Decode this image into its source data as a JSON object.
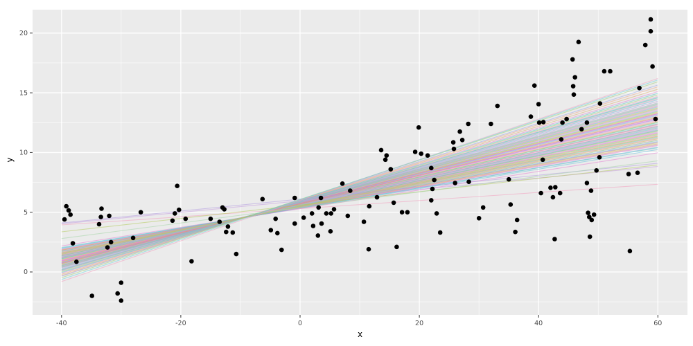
{
  "chart_data": {
    "type": "scatter",
    "title": "",
    "xlabel": "x",
    "ylabel": "y",
    "xlim": [
      -44.9,
      65.0
    ],
    "ylim": [
      -3.6,
      22.0
    ],
    "x_ticks": [
      -40,
      -20,
      0,
      20,
      40,
      60
    ],
    "y_ticks": [
      0,
      5,
      10,
      15,
      20
    ],
    "x_minor_ticks": [
      -30,
      -10,
      10,
      30,
      50
    ],
    "y_minor_ticks": [
      -2.5,
      2.5,
      7.5,
      12.5,
      17.5
    ],
    "grid": "on",
    "legend": "none",
    "panel_bg": "#EBEBEB",
    "grid_color": "#FFFFFF",
    "tick_label_color": "#4d4d4d",
    "tick_mark_color": "#333333",
    "point_color": "#000000",
    "point_radius": 3.3,
    "line_opacity": 0.55,
    "line_x_range": [
      -40,
      60
    ],
    "points": [
      [
        -39.2,
        5.5
      ],
      [
        -38.8,
        5.15
      ],
      [
        -38.5,
        4.8
      ],
      [
        -39.5,
        4.4
      ],
      [
        -33.3,
        5.3
      ],
      [
        -33.4,
        4.6
      ],
      [
        -32,
        4.7
      ],
      [
        -33.7,
        4.0
      ],
      [
        -38.1,
        2.4
      ],
      [
        -31.7,
        2.5
      ],
      [
        -32.3,
        2.05
      ],
      [
        -28,
        2.85
      ],
      [
        -37.5,
        0.85
      ],
      [
        -30,
        -0.9
      ],
      [
        -34.9,
        -2.0
      ],
      [
        -30.6,
        -1.8
      ],
      [
        -30,
        -2.4
      ],
      [
        -26.7,
        5.0
      ],
      [
        -20.6,
        7.2
      ],
      [
        -20.3,
        5.2
      ],
      [
        -21,
        4.9
      ],
      [
        -21.4,
        4.3
      ],
      [
        -19.2,
        4.45
      ],
      [
        -13,
        5.4
      ],
      [
        -12.7,
        5.25
      ],
      [
        -15,
        4.45
      ],
      [
        -13.5,
        4.2
      ],
      [
        -12.1,
        3.8
      ],
      [
        -12.4,
        3.35
      ],
      [
        -11.3,
        3.3
      ],
      [
        -6.3,
        6.1
      ],
      [
        -0.9,
        6.2
      ],
      [
        -4.1,
        4.45
      ],
      [
        -0.9,
        4.05
      ],
      [
        -4.9,
        3.5
      ],
      [
        -3.8,
        3.25
      ],
      [
        -3.1,
        1.85
      ],
      [
        -10.7,
        1.5
      ],
      [
        -18.2,
        0.9
      ],
      [
        15.2,
        8.6
      ],
      [
        7.1,
        7.4
      ],
      [
        8.4,
        6.8
      ],
      [
        3.5,
        6.2
      ],
      [
        12.9,
        6.25
      ],
      [
        15.7,
        5.8
      ],
      [
        3.1,
        5.4
      ],
      [
        11.6,
        5.5
      ],
      [
        5.7,
        5.25
      ],
      [
        5.2,
        4.9
      ],
      [
        4.4,
        4.9
      ],
      [
        2.0,
        4.9
      ],
      [
        0.6,
        4.55
      ],
      [
        8.0,
        4.7
      ],
      [
        2.2,
        3.85
      ],
      [
        3.6,
        4.05
      ],
      [
        10.7,
        4.2
      ],
      [
        5.1,
        3.4
      ],
      [
        3.0,
        3.05
      ],
      [
        17.1,
        5.0
      ],
      [
        18.0,
        5.0
      ],
      [
        11.5,
        1.9
      ],
      [
        16.2,
        2.1
      ],
      [
        19.9,
        12.1
      ],
      [
        13.6,
        10.2
      ],
      [
        14.5,
        9.75
      ],
      [
        14.3,
        9.4
      ],
      [
        19.3,
        10.05
      ],
      [
        20.3,
        9.9
      ],
      [
        21.4,
        9.75
      ],
      [
        25.7,
        10.85
      ],
      [
        25.8,
        10.3
      ],
      [
        26.8,
        11.75
      ],
      [
        27.2,
        11.05
      ],
      [
        28.2,
        12.4
      ],
      [
        32,
        12.4
      ],
      [
        33.1,
        13.9
      ],
      [
        39.3,
        15.6
      ],
      [
        40,
        14.05
      ],
      [
        38.7,
        13.0
      ],
      [
        40.1,
        12.5
      ],
      [
        40.8,
        12.55
      ],
      [
        40.7,
        9.4
      ],
      [
        22,
        8.7
      ],
      [
        22.5,
        7.7
      ],
      [
        26,
        7.45
      ],
      [
        28.3,
        7.55
      ],
      [
        35,
        7.75
      ],
      [
        22.2,
        6.95
      ],
      [
        22,
        6.0
      ],
      [
        22.9,
        4.9
      ],
      [
        30.7,
        5.4
      ],
      [
        30,
        4.5
      ],
      [
        23.5,
        3.3
      ],
      [
        35.3,
        5.65
      ],
      [
        36.4,
        4.35
      ],
      [
        36.1,
        3.35
      ],
      [
        40.4,
        6.6
      ],
      [
        42,
        7.05
      ],
      [
        42.8,
        7.1
      ],
      [
        42.4,
        6.25
      ],
      [
        42.7,
        2.75
      ],
      [
        58.8,
        21.15
      ],
      [
        58.8,
        20.15
      ],
      [
        46.7,
        19.25
      ],
      [
        57.9,
        19.0
      ],
      [
        45.7,
        17.8
      ],
      [
        59.1,
        17.2
      ],
      [
        51,
        16.8
      ],
      [
        52,
        16.8
      ],
      [
        46.1,
        16.3
      ],
      [
        45.8,
        15.55
      ],
      [
        45.9,
        14.85
      ],
      [
        56.9,
        15.4
      ],
      [
        50.3,
        14.1
      ],
      [
        44,
        12.5
      ],
      [
        44.7,
        12.8
      ],
      [
        48.1,
        12.5
      ],
      [
        47.2,
        11.95
      ],
      [
        59.6,
        12.8
      ],
      [
        43.8,
        11.1
      ],
      [
        50.2,
        9.6
      ],
      [
        49.7,
        8.5
      ],
      [
        55.1,
        8.2
      ],
      [
        56.6,
        8.3
      ],
      [
        48.1,
        7.45
      ],
      [
        43.6,
        6.6
      ],
      [
        48.8,
        6.8
      ],
      [
        48.3,
        4.95
      ],
      [
        49.3,
        4.8
      ],
      [
        48.5,
        4.6
      ],
      [
        48.9,
        4.35
      ],
      [
        48.6,
        2.95
      ],
      [
        55.3,
        1.75
      ]
    ],
    "lines": [
      [
        5.62,
        0.112,
        "#e584d4"
      ],
      [
        5.75,
        0.125,
        "#f0a0c8"
      ],
      [
        5.48,
        0.098,
        "#f4b4cf"
      ],
      [
        5.85,
        0.135,
        "#d89bdc"
      ],
      [
        5.55,
        0.105,
        "#b39de0"
      ],
      [
        5.7,
        0.118,
        "#9aa8e6"
      ],
      [
        5.4,
        0.092,
        "#84b4e0"
      ],
      [
        5.9,
        0.142,
        "#6cc4de"
      ],
      [
        5.58,
        0.108,
        "#5ecccc"
      ],
      [
        5.78,
        0.128,
        "#6fd0b2"
      ],
      [
        5.5,
        0.1,
        "#85cf95"
      ],
      [
        5.95,
        0.148,
        "#a0d274"
      ],
      [
        5.65,
        0.115,
        "#bcc95e"
      ],
      [
        5.45,
        0.095,
        "#d0bc58"
      ],
      [
        5.82,
        0.132,
        "#e0ad6e"
      ],
      [
        5.6,
        0.11,
        "#ecaa8a"
      ],
      [
        5.72,
        0.122,
        "#f0a3a3"
      ],
      [
        5.38,
        0.088,
        "#d89fb2"
      ],
      [
        5.88,
        0.138,
        "#a8b0c0"
      ],
      [
        5.52,
        0.102,
        "#e06fd8"
      ],
      [
        5.98,
        0.152,
        "#e584d4"
      ],
      [
        5.68,
        0.117,
        "#f0a0c8"
      ],
      [
        5.43,
        0.094,
        "#f4b4cf"
      ],
      [
        5.8,
        0.13,
        "#d89bdc"
      ],
      [
        5.57,
        0.107,
        "#b39de0"
      ],
      [
        5.74,
        0.124,
        "#9aa8e6"
      ],
      [
        5.35,
        0.085,
        "#84b4e0"
      ],
      [
        5.92,
        0.145,
        "#6cc4de"
      ],
      [
        5.63,
        0.113,
        "#5ecccc"
      ],
      [
        5.47,
        0.097,
        "#6fd0b2"
      ],
      [
        5.86,
        0.136,
        "#85cf95"
      ],
      [
        5.54,
        0.104,
        "#a0d274"
      ],
      [
        5.76,
        0.126,
        "#bcc95e"
      ],
      [
        5.42,
        0.09,
        "#d0bc58"
      ],
      [
        6.0,
        0.155,
        "#e0ad6e"
      ],
      [
        5.66,
        0.116,
        "#ecaa8a"
      ],
      [
        5.49,
        0.099,
        "#f0a3a3"
      ],
      [
        5.84,
        0.134,
        "#d89fb2"
      ],
      [
        5.59,
        0.109,
        "#a8b0c0"
      ],
      [
        5.71,
        0.12,
        "#e06fd8"
      ],
      [
        5.37,
        0.087,
        "#e584d4"
      ],
      [
        5.94,
        0.146,
        "#f0a0c8"
      ],
      [
        5.61,
        0.111,
        "#f4b4cf"
      ],
      [
        5.53,
        0.103,
        "#d89bdc"
      ],
      [
        5.89,
        0.14,
        "#b39de0"
      ],
      [
        5.56,
        0.106,
        "#9aa8e6"
      ],
      [
        5.73,
        0.123,
        "#84b4e0"
      ],
      [
        5.33,
        0.082,
        "#6cc4de"
      ],
      [
        5.96,
        0.15,
        "#5ecccc"
      ],
      [
        5.67,
        0.114,
        "#6fd0b2"
      ],
      [
        5.44,
        0.093,
        "#85cf95"
      ],
      [
        5.81,
        0.131,
        "#a0d274"
      ],
      [
        5.51,
        0.101,
        "#bcc95e"
      ],
      [
        5.77,
        0.127,
        "#d0bc58"
      ],
      [
        5.39,
        0.089,
        "#e0ad6e"
      ],
      [
        6.02,
        0.158,
        "#ecaa8a"
      ],
      [
        5.64,
        0.112,
        "#f0a3a3"
      ],
      [
        5.46,
        0.096,
        "#d89fb2"
      ],
      [
        5.87,
        0.137,
        "#a8b0c0"
      ],
      [
        5.69,
        0.119,
        "#e06fd8"
      ],
      [
        5.3,
        0.078,
        "#e584d4"
      ],
      [
        5.91,
        0.143,
        "#f0a0c8"
      ],
      [
        5.58,
        0.107,
        "#f4b4cf"
      ],
      [
        5.79,
        0.129,
        "#d89bdc"
      ],
      [
        5.41,
        0.091,
        "#b39de0"
      ],
      [
        6.05,
        0.16,
        "#9aa8e6"
      ],
      [
        5.6,
        0.11,
        "#84b4e0"
      ],
      [
        5.83,
        0.133,
        "#6cc4de"
      ],
      [
        5.36,
        0.084,
        "#5ecccc"
      ],
      [
        5.93,
        0.144,
        "#6fd0b2"
      ],
      [
        5.55,
        0.105,
        "#85cf95"
      ],
      [
        5.75,
        0.125,
        "#e06fd8"
      ],
      [
        6.08,
        0.164,
        "#a0d274"
      ],
      [
        5.48,
        0.098,
        "#bcc95e"
      ],
      [
        5.7,
        0.121,
        "#d0bc58"
      ],
      [
        5.3,
        0.034,
        "#f2a0c0"
      ],
      [
        6.1,
        0.05,
        "#b39de0"
      ],
      [
        5.95,
        0.048,
        "#c79fe0"
      ],
      [
        5.6,
        0.056,
        "#b4cc5e"
      ],
      [
        5.4,
        0.065,
        "#a5d6a7"
      ],
      [
        6.0,
        0.17,
        "#f2a0c0"
      ],
      [
        6.05,
        0.167,
        "#6fd3dd"
      ]
    ]
  }
}
